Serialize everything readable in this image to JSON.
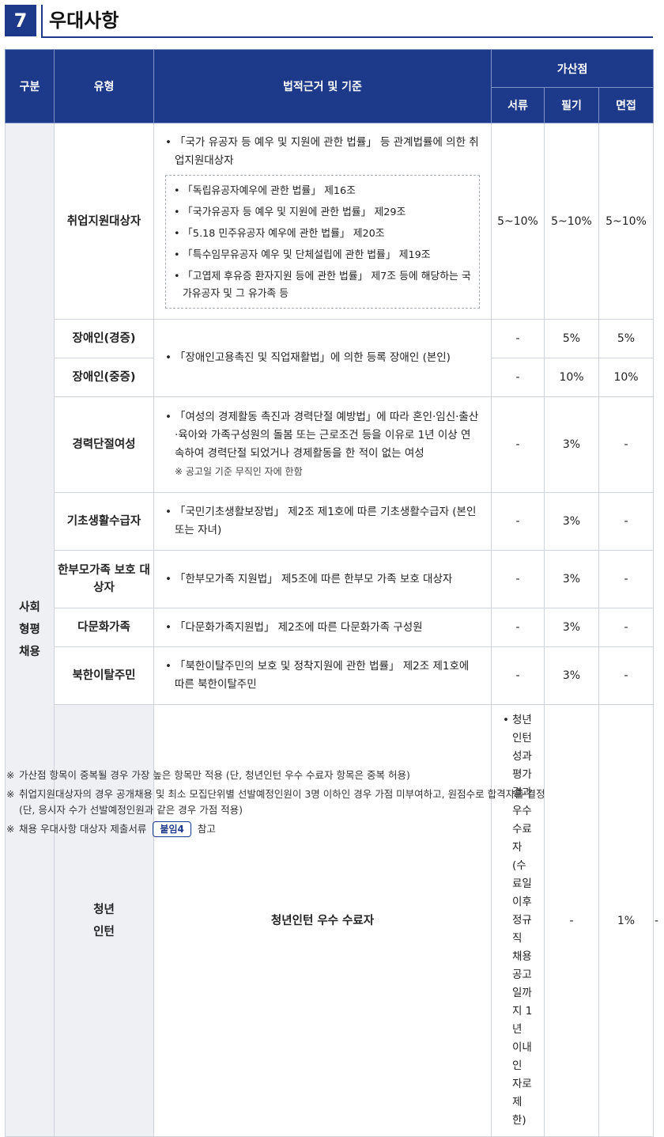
{
  "header": {
    "number": "7",
    "title": "우대사항"
  },
  "table": {
    "headers": {
      "category": "구분",
      "type": "유형",
      "basis": "법적근거 및 기준",
      "bonus": "가산점",
      "doc": "서류",
      "written": "필기",
      "interview": "면접"
    },
    "categories": {
      "social": "사회\n형평\n채용",
      "youth": "청년\n인턴"
    },
    "rows": {
      "employment": {
        "type": "취업지원대상자",
        "basis": "「국가 유공자 등 예우 및 지원에 관한 법률」 등 관계법률에 의한 취업지원대상자",
        "sub": [
          "「독립유공자예우에 관한 법률」 제16조",
          "「국가유공자 등 예우 및 지원에 관한 법률」 제29조",
          "「5.18 민주유공자 예우에 관한 법률」 제20조",
          "「특수임무유공자 예우 및 단체설립에 관한 법률」 제19조",
          "「고엽제 후유증 환자지원 등에 관한 법률」 제7조 등에 해당하는 국가유공자 및 그 유가족 등"
        ],
        "doc": "5~10%",
        "written": "5~10%",
        "interview": "5~10%"
      },
      "disabled_mild": {
        "type": "장애인(경증)",
        "doc": "-",
        "written": "5%",
        "interview": "5%"
      },
      "disabled_severe": {
        "type": "장애인(중증)",
        "doc": "-",
        "written": "10%",
        "interview": "10%"
      },
      "disabled_basis": "「장애인고용촉진 및 직업재활법」에 의한 등록 장애인 (본인)",
      "career_break": {
        "type": "경력단절여성",
        "basis": "「여성의 경제활동 촉진과 경력단절 예방법」에 따라 혼인·임신·출산·육아와 가족구성원의 돌봄 또는 근로조건 등을 이유로 1년 이상 연속하여 경력단절 되었거나 경제활동을 한 적이 없는 여성",
        "note": "※ 공고일 기준 무직인 자에 한함",
        "doc": "-",
        "written": "3%",
        "interview": "-"
      },
      "basic_living": {
        "type": "기초생활수급자",
        "basis": "「국민기초생활보장법」 제2조 제1호에 따른 기초생활수급자 (본인 또는 자녀)",
        "doc": "-",
        "written": "3%",
        "interview": "-"
      },
      "single_parent": {
        "type": "한부모가족 보호 대상자",
        "basis": "「한부모가족 지원법」 제5조에 따른 한부모 가족 보호 대상자",
        "doc": "-",
        "written": "3%",
        "interview": "-"
      },
      "multicultural": {
        "type": "다문화가족",
        "basis": "「다문화가족지원법」 제2조에 따른 다문화가족 구성원",
        "doc": "-",
        "written": "3%",
        "interview": "-"
      },
      "defector": {
        "type": "북한이탈주민",
        "basis": "「북한이탈주민의 보호 및 정착지원에 관한 법률」 제2조 제1호에 따른 북한이탈주민",
        "doc": "-",
        "written": "3%",
        "interview": "-"
      },
      "intern": {
        "type": "청년인턴 우수 수료자",
        "basis": "청년인턴 성과평가 결과 우수 수료자(수료일 이후 정규직 채용 공고일까지 1년 이내인 자로 제한)",
        "doc": "-",
        "written": "1%",
        "interview": "-"
      }
    }
  },
  "notes": {
    "mark": "※",
    "n1": "가산점 항목이 중복될 경우 가장 높은 항목만 적용 (단, 청년인턴 우수 수료자 항목은 중복 허용)",
    "n2a": "취업지원대상자의 경우 공개채용 및 최소 모집단위별 선발예정인원이 3명 이하인 경우 가점 미부여하고, 원점수로 합격자를 결정",
    "n2b": "(단, 응시자 수가 선발예정인원과 같은 경우 가점 적용)",
    "n3_pre": "채용 우대사항 대상자 제출서류",
    "n3_badge": "붙임4",
    "n3_post": "참고"
  }
}
